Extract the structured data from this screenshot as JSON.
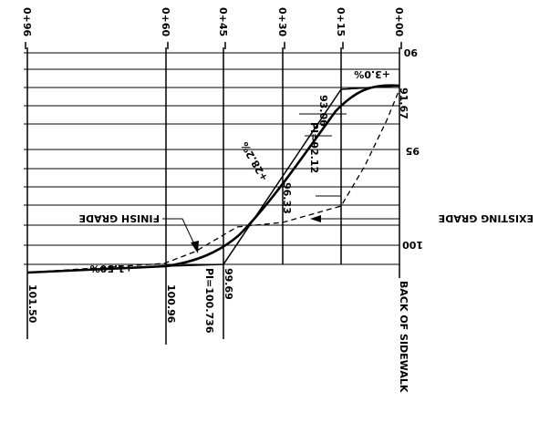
{
  "stations": {
    "s0": "0+00",
    "s15": "0+15",
    "s30": "0+30",
    "s45": "0+45",
    "s60": "0+60",
    "s96": "0+96"
  },
  "elevations": {
    "e90": "90",
    "e95": "95",
    "e100": "100"
  },
  "slopes": {
    "top": "+3.0%",
    "middle": "+28.2%",
    "bottom": "+1.50%"
  },
  "points": {
    "pi_upper": "PI=92.12",
    "upper_value": "93.06",
    "start_value": "91.67",
    "middle_value": "96.33",
    "lower_value": "99.69",
    "pi_lower": "PI=100.736",
    "left_value": "100.96",
    "end_value": "101.50"
  },
  "labels": {
    "existing_grade": "EXISTING GRADE",
    "finish_grade": "FINISH GRADE",
    "back_of_sidewalk": "BACK OF SIDEWALK"
  }
}
